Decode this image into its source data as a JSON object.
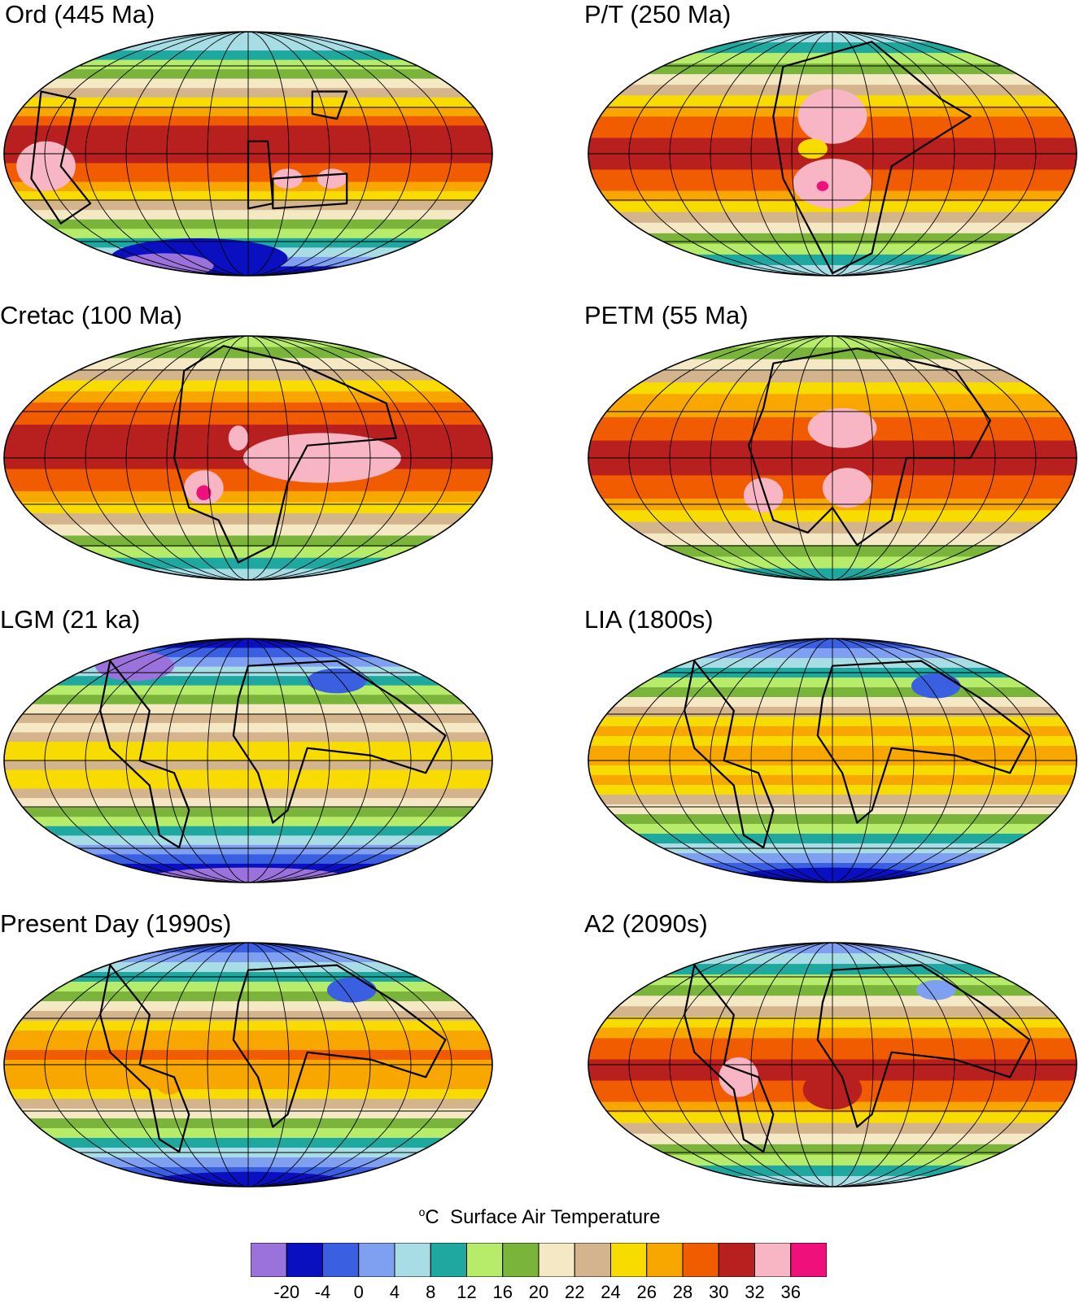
{
  "panels": [
    {
      "title": "Ord (445 Ma)"
    },
    {
      "title": "P/T (250 Ma)"
    },
    {
      "title": "Cretac (100 Ma)"
    },
    {
      "title": "PETM (55 Ma)"
    },
    {
      "title": "LGM (21 ka)"
    },
    {
      "title": "LIA (1800s)"
    },
    {
      "title": "Present Day (1990s)"
    },
    {
      "title": "A2 (2090s)"
    }
  ],
  "legend": {
    "unit_symbol": "o",
    "unit_letter": "C",
    "title": "Surface Air Temperature",
    "labels": [
      "-20",
      "-4",
      "0",
      "4",
      "8",
      "12",
      "16",
      "20",
      "22",
      "24",
      "26",
      "28",
      "30",
      "32",
      "36"
    ],
    "colors": [
      "#9b72dc",
      "#0a10c0",
      "#3a5fe0",
      "#7f9ff0",
      "#a8dde6",
      "#1ea8a0",
      "#b6ec6a",
      "#7ab43a",
      "#f5e8c4",
      "#d4b48c",
      "#f8dc00",
      "#f7a700",
      "#f25c00",
      "#b82020",
      "#f8b6c4",
      "#f0107c"
    ]
  }
}
